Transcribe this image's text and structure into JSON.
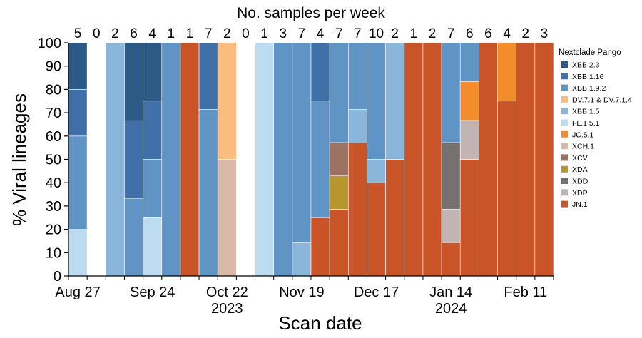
{
  "chart_data": {
    "type": "bar",
    "stacked": true,
    "top_title": "No. samples per week",
    "xlabel": "Scan date",
    "ylabel": "% Viral lineages",
    "ylim": [
      0,
      100
    ],
    "yticks": [
      0,
      10,
      20,
      30,
      40,
      50,
      60,
      70,
      80,
      90,
      100
    ],
    "x_tick_labels": [
      "Aug 27",
      "Sep 24",
      "Oct 22",
      "Nov 19",
      "Dec 17",
      "Jan 14",
      "Feb 11"
    ],
    "x_tick_week_index": [
      0,
      4,
      8,
      12,
      16,
      20,
      24
    ],
    "year_labels": [
      "2023",
      "2024"
    ],
    "year_label_week_index": [
      8,
      20
    ],
    "weekly_samples": [
      5,
      0,
      2,
      6,
      4,
      1,
      1,
      7,
      2,
      0,
      1,
      3,
      7,
      4,
      7,
      7,
      10,
      2,
      1,
      2,
      7,
      6,
      6,
      4,
      2,
      3
    ],
    "legend_title": "Nextclade Pango",
    "legend_position": "right",
    "lineages": [
      {
        "name": "XBB.2.3",
        "color": "#2b5a87"
      },
      {
        "name": "XBB.1.16",
        "color": "#4170a8"
      },
      {
        "name": "XBB.1.9.2",
        "color": "#6094c4"
      },
      {
        "name": "DV.7.1 & DV.7.1.4",
        "color": "#fbbd7f"
      },
      {
        "name": "XBB.1.5",
        "color": "#8ab6db"
      },
      {
        "name": "FL.1.5.1",
        "color": "#bedcf1"
      },
      {
        "name": "JC.5.1",
        "color": "#f48c2c"
      },
      {
        "name": "XCH.1",
        "color": "#d9b8aa"
      },
      {
        "name": "XCV",
        "color": "#9c7262"
      },
      {
        "name": "XDA",
        "color": "#b8962e"
      },
      {
        "name": "XDD",
        "color": "#777070"
      },
      {
        "name": "XDP",
        "color": "#c2b4b2"
      },
      {
        "name": "JN.1",
        "color": "#c95427"
      }
    ],
    "weeks": [
      {
        "week": 0,
        "segments": [
          [
            "FL.1.5.1",
            20
          ],
          [
            "XBB.1.9.2",
            40
          ],
          [
            "XBB.1.16",
            20
          ],
          [
            "XBB.2.3",
            20
          ]
        ]
      },
      {
        "week": 1,
        "segments": []
      },
      {
        "week": 2,
        "segments": [
          [
            "XBB.1.5",
            100
          ]
        ]
      },
      {
        "week": 3,
        "segments": [
          [
            "XBB.1.9.2",
            33.3
          ],
          [
            "XBB.1.16",
            33.3
          ],
          [
            "XBB.2.3",
            33.4
          ]
        ]
      },
      {
        "week": 4,
        "segments": [
          [
            "FL.1.5.1",
            25
          ],
          [
            "XBB.1.9.2",
            25
          ],
          [
            "XBB.1.16",
            25
          ],
          [
            "XBB.2.3",
            25
          ]
        ]
      },
      {
        "week": 5,
        "segments": [
          [
            "XBB.1.9.2",
            100
          ]
        ]
      },
      {
        "week": 6,
        "segments": [
          [
            "JN.1",
            100
          ]
        ]
      },
      {
        "week": 7,
        "segments": [
          [
            "XBB.1.9.2",
            71.4
          ],
          [
            "XBB.1.16",
            28.6
          ]
        ]
      },
      {
        "week": 8,
        "segments": [
          [
            "XCH.1",
            50
          ],
          [
            "DV.7.1 & DV.7.1.4",
            50
          ]
        ]
      },
      {
        "week": 9,
        "segments": []
      },
      {
        "week": 10,
        "segments": [
          [
            "FL.1.5.1",
            100
          ]
        ]
      },
      {
        "week": 11,
        "segments": [
          [
            "XBB.1.9.2",
            100
          ]
        ]
      },
      {
        "week": 12,
        "segments": [
          [
            "XBB.1.5",
            14.3
          ],
          [
            "XBB.1.9.2",
            85.7
          ]
        ]
      },
      {
        "week": 13,
        "segments": [
          [
            "JN.1",
            25
          ],
          [
            "XBB.1.9.2",
            50
          ],
          [
            "XBB.1.16",
            25
          ]
        ]
      },
      {
        "week": 14,
        "segments": [
          [
            "JN.1",
            28.6
          ],
          [
            "XDA",
            14.3
          ],
          [
            "XCV",
            14.3
          ],
          [
            "XBB.1.9.2",
            42.8
          ]
        ]
      },
      {
        "week": 15,
        "segments": [
          [
            "JN.1",
            57.1
          ],
          [
            "XBB.1.5",
            14.3
          ],
          [
            "XBB.1.9.2",
            28.6
          ]
        ]
      },
      {
        "week": 16,
        "segments": [
          [
            "JN.1",
            40
          ],
          [
            "XBB.1.5",
            10
          ],
          [
            "XBB.1.9.2",
            50
          ]
        ]
      },
      {
        "week": 17,
        "segments": [
          [
            "JN.1",
            50
          ],
          [
            "XBB.1.5",
            50
          ]
        ]
      },
      {
        "week": 18,
        "segments": [
          [
            "JN.1",
            100
          ]
        ]
      },
      {
        "week": 19,
        "segments": [
          [
            "JN.1",
            100
          ]
        ]
      },
      {
        "week": 20,
        "segments": [
          [
            "JN.1",
            14.3
          ],
          [
            "XDP",
            14.3
          ],
          [
            "XDD",
            28.6
          ],
          [
            "XBB.1.9.2",
            42.8
          ]
        ]
      },
      {
        "week": 21,
        "segments": [
          [
            "JN.1",
            50
          ],
          [
            "XDP",
            16.7
          ],
          [
            "JC.5.1",
            16.7
          ],
          [
            "XBB.1.9.2",
            16.6
          ]
        ]
      },
      {
        "week": 22,
        "segments": [
          [
            "JN.1",
            100
          ]
        ]
      },
      {
        "week": 23,
        "segments": [
          [
            "JN.1",
            75
          ],
          [
            "JC.5.1",
            25
          ]
        ]
      },
      {
        "week": 24,
        "segments": [
          [
            "JN.1",
            100
          ]
        ]
      },
      {
        "week": 25,
        "segments": [
          [
            "JN.1",
            100
          ]
        ]
      }
    ]
  }
}
